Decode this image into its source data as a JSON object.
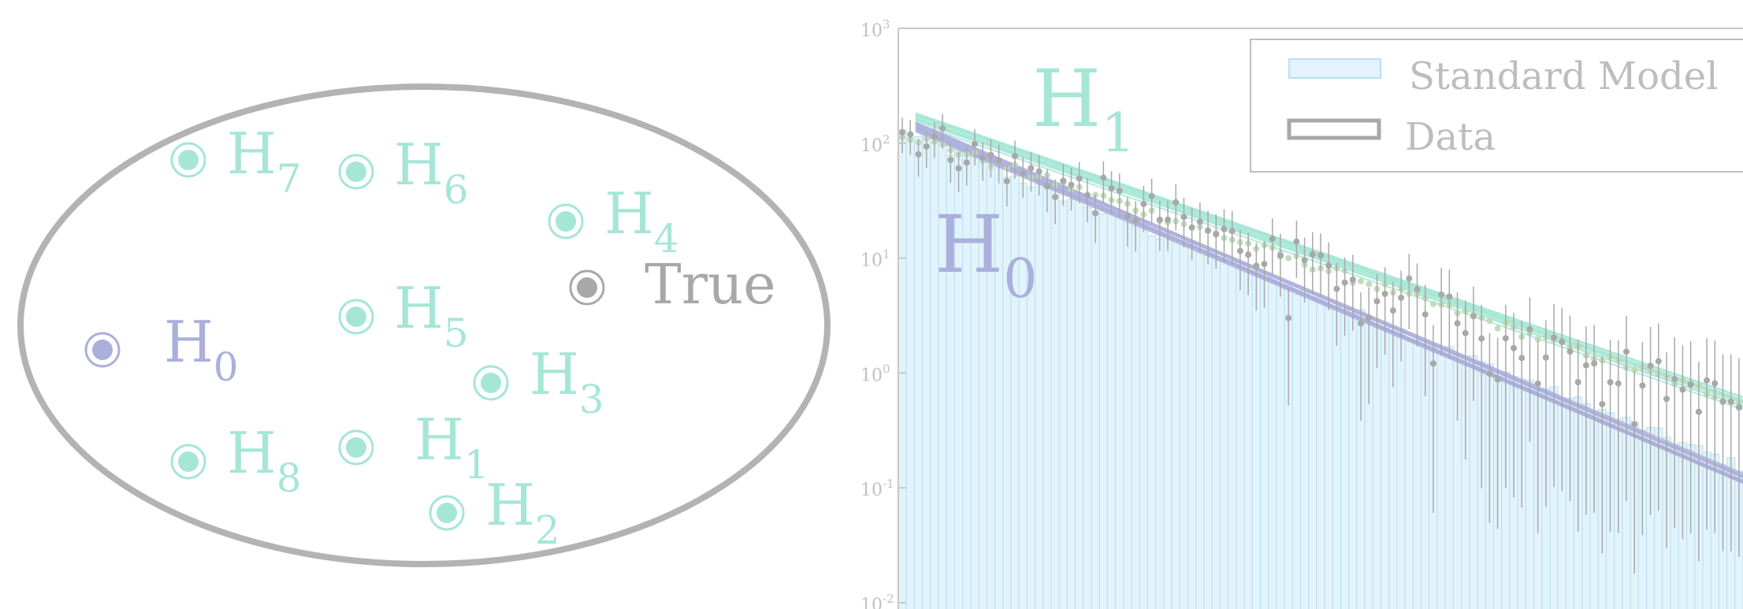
{
  "hypotheses": {
    "true_label": "True",
    "items": [
      {
        "name": "H",
        "sub": "7",
        "color": "#a6e6d6"
      },
      {
        "name": "H",
        "sub": "6",
        "color": "#a6e6d6"
      },
      {
        "name": "H",
        "sub": "4",
        "color": "#a6e6d6"
      },
      {
        "name": "H",
        "sub": "5",
        "color": "#a6e6d6"
      },
      {
        "name": "H",
        "sub": "0",
        "color": "#abafdc"
      },
      {
        "name": "H",
        "sub": "3",
        "color": "#a6e6d6"
      },
      {
        "name": "H",
        "sub": "8",
        "color": "#a6e6d6"
      },
      {
        "name": "H",
        "sub": "1",
        "color": "#a6e6d6"
      },
      {
        "name": "H",
        "sub": "2",
        "color": "#a6e6d6"
      }
    ]
  },
  "colors": {
    "ellipse": "#b3b3b3",
    "true_point": "#a8a8a8",
    "bars_fill": "#e2f3fb",
    "bars_edge": "#b8dff0",
    "data": "#a8a8a8",
    "h1": "#a6e6d6",
    "h0": "#abafdc",
    "intermediate": "#bcd9b4",
    "axis": "#c8c8c8"
  },
  "chart_data": {
    "type": "bar",
    "y_scale": "log",
    "ylim": [
      0.01,
      1000
    ],
    "yticks": [
      {
        "base": "10",
        "exp": "3"
      },
      {
        "base": "10",
        "exp": "2"
      },
      {
        "base": "10",
        "exp": "1"
      },
      {
        "base": "10",
        "exp": "0"
      },
      {
        "base": "10",
        "exp": "-1"
      },
      {
        "base": "10",
        "exp": "-2"
      }
    ],
    "legend": {
      "position": "top-right",
      "entries": [
        "Standard Model",
        "Data"
      ]
    },
    "annotations": [
      {
        "name": "H",
        "sub": "1",
        "color": "#a6e6d6"
      },
      {
        "name": "H",
        "sub": "0",
        "color": "#abafdc"
      }
    ],
    "series": [
      {
        "name": "Standard Model",
        "kind": "bars",
        "start": 130,
        "end": 0.15
      },
      {
        "name": "Data",
        "kind": "points_errorbars",
        "start": 130,
        "end": 0.5
      },
      {
        "kind": "bands",
        "hypothesis": "H1",
        "start": 165,
        "end": 0.55
      },
      {
        "kind": "bands",
        "hypothesis": "H0",
        "start": 140,
        "end": 0.12
      }
    ]
  }
}
